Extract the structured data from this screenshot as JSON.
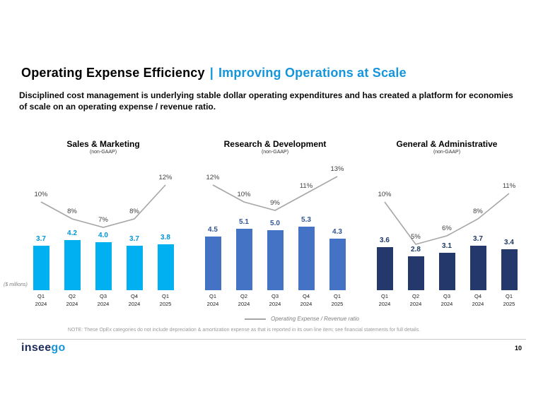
{
  "slide": {
    "title": {
      "main": "Operating Expense Efficiency",
      "separator": "|",
      "highlight": "Improving Operations at Scale"
    },
    "subtitle": "Disciplined cost management is underlying stable dollar operating expenditures and has created a platform for economies of scale on an operating expense /  revenue ratio.",
    "axis_note": "($ millions)",
    "legend": {
      "label": "Operating Expense  / Revenue ratio"
    },
    "footnote": "NOTE: These OpEx categories do not include depreciation & amortization expense as that is reported in its own line item; see financial statements for full details.",
    "logo": {
      "prefix": "insee",
      "suffix": "go"
    },
    "page_number": "10",
    "colors": {
      "accent_blue": "#1595db",
      "logo_navy": "#1e2c5c",
      "ratio_line_gray": "#a6a6a6"
    }
  },
  "chart_data": [
    {
      "type": "bar",
      "title": "Sales & Marketing",
      "subtitle": "(non-GAAP)",
      "ylabel": "($ millions)",
      "categories": [
        "Q1 2024",
        "Q2 2024",
        "Q3 2024",
        "Q4 2024",
        "Q1 2025"
      ],
      "series": [
        {
          "name": "Operating Expense ($M)",
          "type": "bar",
          "values": [
            3.7,
            4.2,
            4.0,
            3.7,
            3.8
          ]
        },
        {
          "name": "Operating Expense / Revenue ratio (%)",
          "type": "line",
          "values": [
            10,
            8,
            7,
            8,
            12
          ]
        }
      ],
      "bar_color": "#00b0f0",
      "label_color": "#0095d5",
      "line_color": "#a6a6a6"
    },
    {
      "type": "bar",
      "title": "Research & Development",
      "subtitle": "(non-GAAP)",
      "ylabel": "($ millions)",
      "categories": [
        "Q1 2024",
        "Q2 2024",
        "Q3 2024",
        "Q4 2024",
        "Q1 2025"
      ],
      "series": [
        {
          "name": "Operating Expense ($M)",
          "type": "bar",
          "values": [
            4.5,
            5.1,
            5.0,
            5.3,
            4.3
          ]
        },
        {
          "name": "Operating Expense / Revenue ratio (%)",
          "type": "line",
          "values": [
            12,
            10,
            9,
            11,
            13
          ]
        }
      ],
      "bar_color": "#4472c4",
      "label_color": "#2f5597",
      "line_color": "#a6a6a6"
    },
    {
      "type": "bar",
      "title": "General & Administrative",
      "subtitle": "(non-GAAP)",
      "ylabel": "($ millions)",
      "categories": [
        "Q1 2024",
        "Q2 2024",
        "Q3 2024",
        "Q4 2024",
        "Q1 2025"
      ],
      "series": [
        {
          "name": "Operating Expense ($M)",
          "type": "bar",
          "values": [
            3.6,
            2.8,
            3.1,
            3.7,
            3.4
          ]
        },
        {
          "name": "Operating Expense / Revenue ratio (%)",
          "type": "line",
          "values": [
            10,
            5,
            6,
            8,
            11
          ]
        }
      ],
      "bar_color": "#24386b",
      "label_color": "#1f3864",
      "line_color": "#a6a6a6"
    }
  ]
}
